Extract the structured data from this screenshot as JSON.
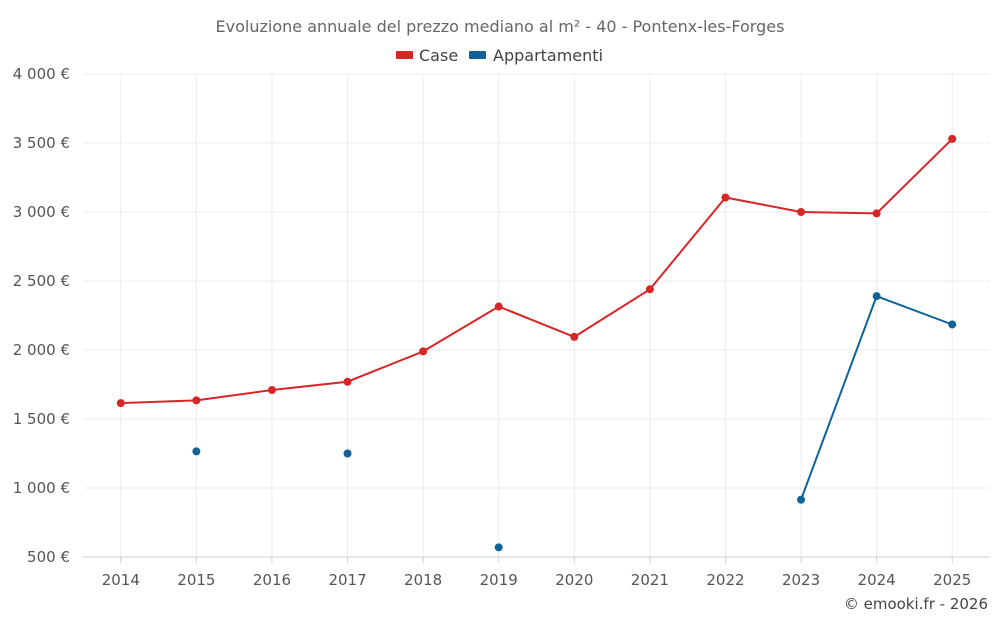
{
  "chart_data": {
    "type": "line",
    "title": "Evoluzione annuale del prezzo mediano al m² - 40 - Pontenx-les-Forges",
    "xlabel": "",
    "ylabel": "",
    "categories": [
      "2014",
      "2015",
      "2016",
      "2017",
      "2018",
      "2019",
      "2020",
      "2021",
      "2022",
      "2023",
      "2024",
      "2025"
    ],
    "ylim": [
      500,
      4000
    ],
    "yticks": [
      500,
      1000,
      1500,
      2000,
      2500,
      3000,
      3500,
      4000
    ],
    "ytick_labels": [
      "500 €",
      "1 000 €",
      "1 500 €",
      "2 000 €",
      "2 500 €",
      "3 000 €",
      "3 500 €",
      "4 000 €"
    ],
    "grid": true,
    "legend_position": "top-center",
    "series": [
      {
        "name": "Case",
        "color": "#d62728",
        "values": [
          1615,
          1635,
          1710,
          1770,
          1990,
          2315,
          2095,
          2440,
          3105,
          3000,
          2990,
          3530
        ]
      },
      {
        "name": "Appartamenti",
        "color": "#0e6298",
        "values": [
          null,
          1265,
          null,
          1250,
          null,
          570,
          null,
          null,
          null,
          915,
          2390,
          2185
        ]
      }
    ],
    "credit": "© emooki.fr - 2026"
  }
}
